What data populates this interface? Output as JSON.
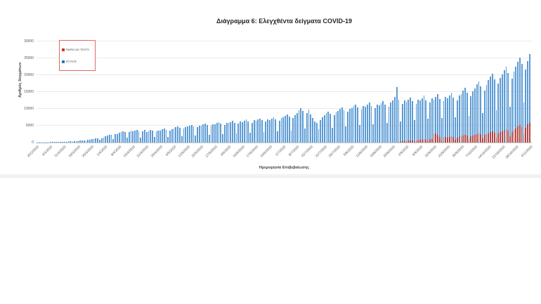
{
  "chart_data": {
    "type": "bar",
    "title": "Διάγραμμα 6: Ελεγχθέντα δείγματα COVID-19",
    "xlabel": "Ημερομηνία Επιβεβαίωσης",
    "ylabel": "Αριθμός δειγμάτων",
    "ylim": [
      0,
      30000
    ],
    "ytick_step": 5000,
    "grid": true,
    "legend_position": "top-left",
    "n_points": 253,
    "x_start_date": "26/2/2020",
    "x_tick_labels": [
      "26/2/2020",
      "4/3/2020",
      "11/3/2020",
      "18/3/2020",
      "25/3/2020",
      "1/4/2020",
      "8/4/2020",
      "15/4/2020",
      "22/4/2020",
      "29/4/2020",
      "6/5/2020",
      "13/5/2020",
      "20/5/2020",
      "27/5/2020",
      "3/6/2020",
      "10/6/2020",
      "17/6/2020",
      "24/6/2020",
      "1/7/2020",
      "8/7/2020",
      "15/7/2020",
      "22/7/2020",
      "29/7/2020",
      "5/8/2020",
      "12/8/2020",
      "19/8/2020",
      "26/8/2020",
      "2/9/2020",
      "9/9/2020",
      "16/9/2020",
      "23/9/2020",
      "30/9/2020",
      "7/10/2020",
      "14/10/2020",
      "21/10/2020",
      "28/10/2020",
      "4/11/2020"
    ],
    "series": [
      {
        "name": "RT-PCR",
        "color": "#5b9bd5",
        "offset": 0,
        "values": [
          40,
          55,
          65,
          70,
          45,
          80,
          95,
          120,
          140,
          160,
          170,
          110,
          190,
          220,
          260,
          300,
          340,
          360,
          240,
          400,
          450,
          520,
          600,
          680,
          720,
          480,
          800,
          900,
          1000,
          1100,
          1200,
          1150,
          800,
          1300,
          1450,
          1800,
          2100,
          2300,
          2200,
          1100,
          2400,
          2600,
          2900,
          3200,
          3400,
          3100,
          1400,
          3200,
          3500,
          3300,
          3600,
          3800,
          3400,
          1500,
          3400,
          3700,
          3100,
          3400,
          3800,
          3500,
          1600,
          3300,
          3600,
          3500,
          3900,
          4100,
          3700,
          1700,
          3600,
          4000,
          4200,
          4500,
          4700,
          4300,
          1900,
          4100,
          4600,
          4700,
          5000,
          5200,
          4800,
          2100,
          4500,
          5100,
          5100,
          5400,
          5700,
          5200,
          2300,
          4900,
          5500,
          5500,
          5800,
          6000,
          5600,
          2500,
          5300,
          5900,
          5800,
          6100,
          6400,
          5900,
          2700,
          5600,
          6200,
          6100,
          6500,
          6800,
          6300,
          2900,
          5900,
          6600,
          6400,
          6800,
          7100,
          6600,
          3100,
          6200,
          6900,
          6700,
          7100,
          7500,
          6900,
          3300,
          6500,
          7200,
          7400,
          7900,
          8300,
          7700,
          3600,
          7300,
          8100,
          8800,
          9600,
          10300,
          9400,
          4200,
          8700,
          9800,
          8400,
          7200,
          6300,
          5800,
          3900,
          6700,
          7600,
          8100,
          8700,
          9200,
          8500,
          4400,
          8200,
          9000,
          9300,
          9900,
          10400,
          9600,
          4800,
          9100,
          10000,
          10200,
          10800,
          11300,
          10400,
          5200,
          9800,
          10900,
          10600,
          11200,
          11800,
          10800,
          5500,
          10200,
          11300,
          11000,
          11700,
          12300,
          11200,
          5800,
          10600,
          11800,
          12400,
          13600,
          16500,
          12800,
          6200,
          11400,
          12600,
          12000,
          12800,
          13400,
          12200,
          6600,
          11500,
          12700,
          12400,
          13200,
          13900,
          12600,
          7000,
          11900,
          13100,
          12800,
          13600,
          14300,
          13000,
          7300,
          12200,
          13500,
          13200,
          14000,
          14800,
          13400,
          7600,
          12600,
          13900,
          14400,
          15400,
          16200,
          14800,
          8000,
          13800,
          15200,
          16000,
          17200,
          18200,
          16600,
          8800,
          15400,
          17000,
          18600,
          19600,
          20400,
          18800,
          9600,
          17400,
          19200,
          20200,
          21400,
          22400,
          20600,
          10600,
          19000,
          21000,
          22600,
          24000,
          25200,
          23400,
          11800,
          21600,
          24200,
          26300
        ]
      },
      {
        "name": "RAPID AG TESTS",
        "color": "#b04545",
        "offset": 185,
        "values": [
          300,
          150,
          350,
          400,
          500,
          600,
          650,
          550,
          250,
          600,
          700,
          800,
          900,
          1000,
          850,
          400,
          950,
          1100,
          2400,
          2800,
          2200,
          1600,
          700,
          1400,
          1600,
          1500,
          1700,
          1900,
          1600,
          800,
          1500,
          1800,
          1900,
          2100,
          2300,
          2000,
          1000,
          1800,
          2100,
          2300,
          2600,
          2900,
          2500,
          1200,
          2200,
          2600,
          2800,
          3100,
          3400,
          3000,
          1500,
          2700,
          3100,
          3300,
          3700,
          4000,
          3500,
          1800,
          3200,
          3700,
          4200,
          4700,
          5200,
          4600,
          2400,
          4300,
          5400,
          5900
        ]
      }
    ],
    "legend": {
      "border_color": "#e0695f",
      "items": [
        {
          "label": "RAPID AG TESTS",
          "swatch_color": "#d32f2f"
        },
        {
          "label": "RT-PCR",
          "swatch_color": "#2e75b6"
        }
      ]
    }
  }
}
